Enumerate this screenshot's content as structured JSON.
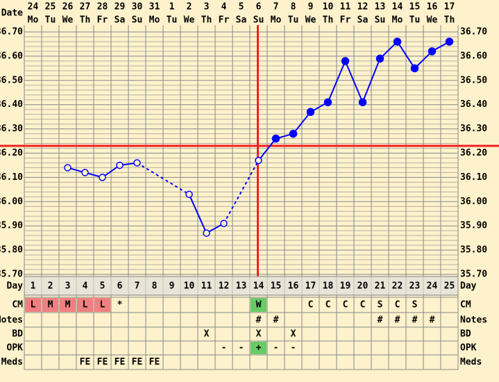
{
  "chart_data": {
    "type": "line",
    "date_label": "Date",
    "day_label": "Day",
    "dates": [
      "24",
      "25",
      "26",
      "27",
      "28",
      "29",
      "30",
      "31",
      "1",
      "2",
      "3",
      "4",
      "5",
      "6",
      "7",
      "8",
      "9",
      "10",
      "11",
      "12",
      "13",
      "14",
      "15",
      "16",
      "17"
    ],
    "weekdays": [
      "Mo",
      "Tu",
      "We",
      "Th",
      "Fr",
      "Sa",
      "Su",
      "Mo",
      "Tu",
      "We",
      "Th",
      "Fr",
      "Sa",
      "Su",
      "Mo",
      "Tu",
      "We",
      "Th",
      "Fr",
      "Sa",
      "Su",
      "Mo",
      "Tu",
      "We",
      "Th"
    ],
    "categories": [
      1,
      2,
      3,
      4,
      5,
      6,
      7,
      8,
      9,
      10,
      11,
      12,
      13,
      14,
      15,
      16,
      17,
      18,
      19,
      20,
      21,
      22,
      23,
      24,
      25
    ],
    "series": [
      {
        "color": "#0000ff",
        "values": [
          null,
          null,
          36.14,
          36.12,
          36.1,
          36.15,
          36.16,
          null,
          null,
          36.03,
          35.87,
          35.91,
          null,
          36.17,
          36.26,
          36.28,
          36.37,
          36.41,
          36.58,
          36.41,
          36.59,
          36.66,
          36.55,
          36.62,
          36.66
        ],
        "filled": [
          false,
          false,
          false,
          false,
          false,
          false,
          false,
          false,
          false,
          false,
          false,
          false,
          false,
          false,
          true,
          true,
          true,
          true,
          true,
          true,
          true,
          true,
          true,
          true,
          true
        ]
      }
    ],
    "ylim": [
      35.7,
      36.7
    ],
    "yticks": [
      {
        "value": 35.7,
        "label": "35.70"
      },
      {
        "value": 35.8,
        "label": "35.80"
      },
      {
        "value": 35.9,
        "label": "35.90"
      },
      {
        "value": 36.0,
        "label": "36.00"
      },
      {
        "value": 36.1,
        "label": "36.10"
      },
      {
        "value": 36.2,
        "label": "36.20"
      },
      {
        "value": 36.3,
        "label": "36.30"
      },
      {
        "value": 36.4,
        "label": "36.40"
      },
      {
        "value": 36.5,
        "label": "36.50"
      },
      {
        "value": 36.6,
        "label": "36.60"
      },
      {
        "value": 36.7,
        "label": "36.70"
      }
    ],
    "coverline": 36.23,
    "ovulation_day": 14,
    "marker_line_color": "#ee2222",
    "rows": [
      {
        "label": "CM",
        "cells": [
          "L",
          "M",
          "M",
          "L",
          "L",
          "*",
          null,
          null,
          null,
          null,
          null,
          null,
          null,
          "W",
          null,
          null,
          "C",
          "C",
          "C",
          "C",
          "S",
          "C",
          "S",
          null,
          null
        ],
        "colors": [
          "#f08080",
          "#f08080",
          "#f08080",
          "#f08080",
          "#f08080",
          null,
          null,
          null,
          null,
          null,
          null,
          null,
          null,
          "#66cc66",
          null,
          null,
          null,
          null,
          null,
          null,
          null,
          null,
          null,
          null,
          null
        ]
      },
      {
        "label": "Notes",
        "cells": [
          null,
          null,
          null,
          null,
          null,
          null,
          null,
          null,
          null,
          null,
          null,
          null,
          null,
          "#",
          "#",
          null,
          null,
          null,
          null,
          null,
          "#",
          "#",
          "#",
          "#",
          null
        ]
      },
      {
        "label": "BD",
        "cells": [
          null,
          null,
          null,
          null,
          null,
          null,
          null,
          null,
          null,
          null,
          "X",
          null,
          null,
          "X",
          null,
          "X",
          null,
          null,
          null,
          null,
          null,
          null,
          null,
          null,
          null
        ]
      },
      {
        "label": "OPK",
        "cells": [
          null,
          null,
          null,
          null,
          null,
          null,
          null,
          null,
          null,
          null,
          null,
          "-",
          "-",
          "+",
          "-",
          "-",
          null,
          null,
          null,
          null,
          null,
          null,
          null,
          null,
          null
        ],
        "colors": [
          null,
          null,
          null,
          null,
          null,
          null,
          null,
          null,
          null,
          null,
          null,
          null,
          null,
          "#66cc66",
          null,
          null,
          null,
          null,
          null,
          null,
          null,
          null,
          null,
          null,
          null
        ]
      },
      {
        "label": "Meds",
        "cells": [
          null,
          null,
          null,
          "FE",
          "FE",
          "FE",
          "FE",
          "FE",
          null,
          null,
          null,
          null,
          null,
          null,
          null,
          null,
          null,
          null,
          null,
          null,
          null,
          null,
          null,
          null,
          null
        ]
      }
    ]
  }
}
